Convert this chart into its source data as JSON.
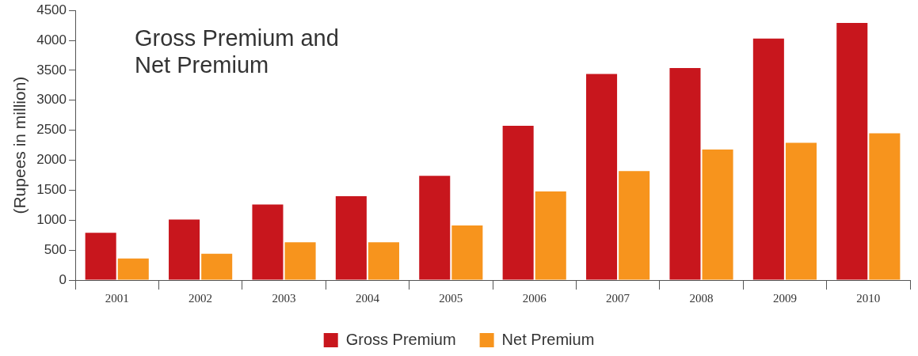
{
  "chart_data": {
    "type": "bar",
    "title": "Gross Premium and Net Premium",
    "ylabel": "(Rupees in million)",
    "categories": [
      "2001",
      "2002",
      "2003",
      "2004",
      "2005",
      "2006",
      "2007",
      "2008",
      "2009",
      "2010"
    ],
    "series": [
      {
        "name": "Gross Premium",
        "color": "#c8161d",
        "values": [
          790,
          1010,
          1260,
          1400,
          1740,
          2575,
          3440,
          3540,
          4030,
          4290
        ]
      },
      {
        "name": "Net Premium",
        "color": "#f7941d",
        "values": [
          360,
          440,
          630,
          630,
          910,
          1480,
          1820,
          2180,
          2290,
          2450
        ]
      }
    ],
    "ylim": [
      0,
      4500
    ],
    "yticks": [
      0,
      500,
      1000,
      1500,
      2000,
      2500,
      3000,
      3500,
      4000,
      4500
    ],
    "legend": "bottom"
  }
}
